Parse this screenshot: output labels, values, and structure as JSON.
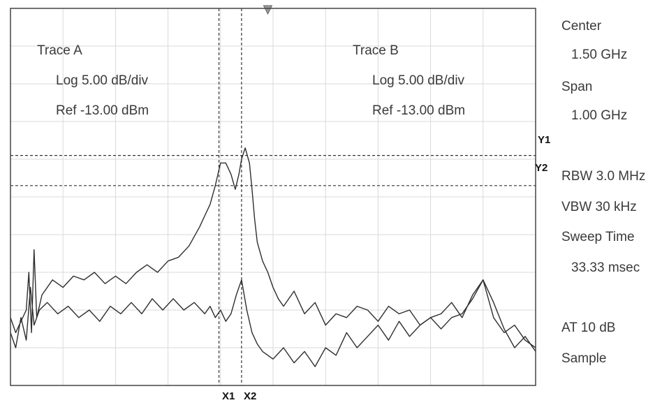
{
  "chart_data": {
    "type": "line",
    "x_unit": "GHz",
    "y_unit": "dBm",
    "xlim": [
      1.0,
      2.0
    ],
    "ylim": [
      -63.0,
      -13.0
    ],
    "grid": true,
    "trace_a_box": {
      "title": "Trace A",
      "scale": "Log  5.00 dB/div",
      "ref": "Ref -13.00 dBm"
    },
    "trace_b_box": {
      "title": "Trace B",
      "scale": "Log  5.00 dB/div",
      "ref": "Ref -13.00 dBm"
    },
    "settings": {
      "center_label": "Center",
      "center_value": "1.50 GHz",
      "span_label": "Span",
      "span_value": "1.00 GHz",
      "rbw": "RBW 3.0 MHz",
      "vbw": "VBW 30 kHz",
      "sweep_label": "Sweep Time",
      "sweep_value": "33.33 msec",
      "atten": "AT 10 dB",
      "detector": "Sample"
    },
    "markers": {
      "y1_label": "Y1",
      "y1_value": -32.5,
      "y2_label": "Y2",
      "y2_value": -36.5,
      "x1_label": "X1",
      "x1_value": 1.397,
      "x2_label": "X2",
      "x2_value": 1.44,
      "ref_marker_x": 1.49
    },
    "series": [
      {
        "x": [
          1.0,
          1.01,
          1.02,
          1.03,
          1.035,
          1.04,
          1.045,
          1.05,
          1.06,
          1.08,
          1.1,
          1.12,
          1.14,
          1.16,
          1.18,
          1.2,
          1.22,
          1.24,
          1.26,
          1.28,
          1.3,
          1.32,
          1.34,
          1.36,
          1.37,
          1.38,
          1.39,
          1.4,
          1.41,
          1.42,
          1.428,
          1.435,
          1.44,
          1.447,
          1.455,
          1.46,
          1.465,
          1.47,
          1.48,
          1.49,
          1.5,
          1.51,
          1.52,
          1.54,
          1.56,
          1.58,
          1.6,
          1.62,
          1.64,
          1.66,
          1.68,
          1.7,
          1.72,
          1.74,
          1.76,
          1.78,
          1.8,
          1.82,
          1.84,
          1.86,
          1.88,
          1.9,
          1.92,
          1.94,
          1.96,
          1.98,
          2.0
        ],
        "y": [
          -54.0,
          -56.0,
          -54.5,
          -53.0,
          -48.0,
          -56.0,
          -45.0,
          -54.0,
          -51.0,
          -49.0,
          -50.0,
          -48.5,
          -49.0,
          -48.0,
          -49.5,
          -48.5,
          -49.5,
          -48.0,
          -47.0,
          -48.0,
          -46.5,
          -46.0,
          -44.5,
          -42.0,
          -40.5,
          -39.0,
          -36.5,
          -33.5,
          -33.5,
          -35.0,
          -37.0,
          -35.0,
          -33.0,
          -31.5,
          -33.5,
          -37.0,
          -41.0,
          -44.0,
          -46.5,
          -48.0,
          -50.0,
          -51.5,
          -52.5,
          -50.5,
          -53.5,
          -52.0,
          -55.0,
          -53.5,
          -54.0,
          -52.5,
          -53.0,
          -54.5,
          -52.5,
          -53.5,
          -53.0,
          -55.0,
          -54.0,
          -53.5,
          -52.0,
          -54.0,
          -51.0,
          -49.0,
          -54.0,
          -56.0,
          -55.0,
          -57.0,
          -58.0
        ]
      },
      {
        "x": [
          1.0,
          1.01,
          1.02,
          1.03,
          1.038,
          1.045,
          1.055,
          1.07,
          1.09,
          1.11,
          1.13,
          1.15,
          1.17,
          1.19,
          1.21,
          1.23,
          1.25,
          1.27,
          1.29,
          1.31,
          1.33,
          1.35,
          1.37,
          1.38,
          1.39,
          1.4,
          1.41,
          1.42,
          1.43,
          1.44,
          1.45,
          1.46,
          1.47,
          1.48,
          1.5,
          1.52,
          1.54,
          1.56,
          1.58,
          1.6,
          1.62,
          1.64,
          1.66,
          1.68,
          1.7,
          1.72,
          1.74,
          1.76,
          1.78,
          1.8,
          1.82,
          1.84,
          1.86,
          1.88,
          1.9,
          1.92,
          1.94,
          1.96,
          1.98,
          2.0
        ],
        "y": [
          -56.0,
          -58.0,
          -54.0,
          -57.0,
          -50.0,
          -55.0,
          -53.0,
          -52.0,
          -53.5,
          -52.5,
          -54.0,
          -53.0,
          -54.5,
          -52.5,
          -53.5,
          -52.0,
          -53.5,
          -51.5,
          -53.0,
          -51.5,
          -53.0,
          -52.0,
          -53.5,
          -52.5,
          -54.0,
          -53.0,
          -54.5,
          -53.5,
          -51.0,
          -49.0,
          -53.0,
          -56.0,
          -57.5,
          -58.5,
          -59.5,
          -58.0,
          -60.0,
          -58.5,
          -60.5,
          -58.0,
          -59.0,
          -56.0,
          -58.0,
          -56.5,
          -55.0,
          -57.0,
          -54.5,
          -56.5,
          -55.0,
          -54.0,
          -55.5,
          -54.0,
          -53.5,
          -51.5,
          -49.0,
          -52.0,
          -55.5,
          -58.0,
          -56.5,
          -58.5
        ]
      }
    ]
  }
}
